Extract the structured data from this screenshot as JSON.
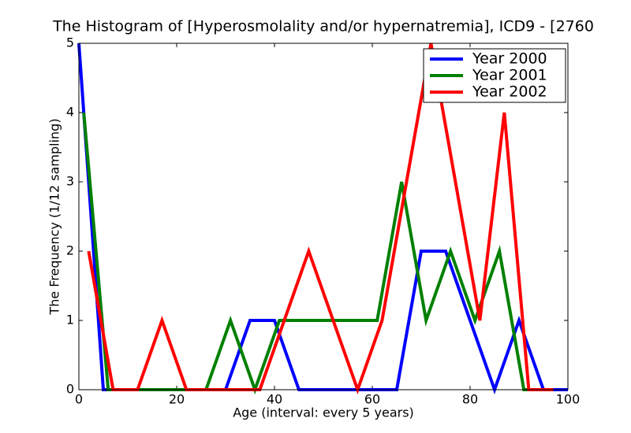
{
  "chart_data": {
    "type": "line",
    "title": "The Histogram of [Hyperosmolality and/or hypernatremia], ICD9 - [2760",
    "xlabel": "Age (interval: every 5 years)",
    "ylabel": "The Frequency (1/12 sampling)",
    "xlim": [
      0,
      100
    ],
    "ylim": [
      0,
      5
    ],
    "xticks": [
      0,
      20,
      40,
      60,
      80,
      100
    ],
    "yticks": [
      0,
      1,
      2,
      3,
      4,
      5
    ],
    "legend": "upper right",
    "series": [
      {
        "name": "Year 2000",
        "color": "#0000ff",
        "x": [
          0,
          5,
          10,
          15,
          20,
          25,
          30,
          35,
          40,
          45,
          50,
          55,
          60,
          65,
          70,
          75,
          80,
          85,
          90,
          95,
          100
        ],
        "values": [
          5,
          0,
          0,
          0,
          0,
          0,
          0,
          1,
          1,
          0,
          0,
          0,
          0,
          0,
          2,
          2,
          1,
          0,
          1,
          0,
          0
        ]
      },
      {
        "name": "Year 2001",
        "color": "#008000",
        "x": [
          1,
          6,
          11,
          16,
          21,
          26,
          31,
          36,
          41,
          46,
          51,
          56,
          61,
          66,
          71,
          76,
          81,
          86,
          91,
          96
        ],
        "values": [
          4,
          0,
          0,
          0,
          0,
          0,
          1,
          0,
          1,
          1,
          1,
          1,
          1,
          3,
          1,
          2,
          1,
          2,
          0,
          0
        ]
      },
      {
        "name": "Year 2002",
        "color": "#ff0000",
        "x": [
          2,
          7,
          12,
          17,
          22,
          27,
          32,
          37,
          42,
          47,
          52,
          57,
          62,
          67,
          72,
          77,
          82,
          87,
          92,
          97
        ],
        "values": [
          2,
          0,
          0,
          1,
          0,
          0,
          0,
          0,
          1,
          2,
          1,
          0,
          1,
          3,
          5,
          3,
          1,
          4,
          0,
          0
        ]
      }
    ]
  }
}
